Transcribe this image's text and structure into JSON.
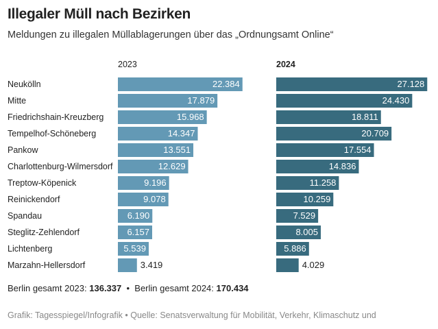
{
  "title": "Illegaler Müll nach Bezirken",
  "subtitle": "Meldungen zu illegalen Müllablagerungen über das „Ordnungsamt Online“",
  "chart_data": {
    "type": "bar",
    "orientation": "horizontal",
    "categories": [
      "Neukölln",
      "Mitte",
      "Friedrichshain-Kreuzberg",
      "Tempelhof-Schöneberg",
      "Pankow",
      "Charlottenburg-Wilmersdorf",
      "Treptow-Köpenick",
      "Reinickendorf",
      "Spandau",
      "Steglitz-Zehlendorf",
      "Lichtenberg",
      "Marzahn-Hellersdorf"
    ],
    "series": [
      {
        "name": "2023",
        "color": "#6399b5",
        "values": [
          22384,
          17879,
          15968,
          14347,
          13551,
          12629,
          9196,
          9078,
          6190,
          6157,
          5539,
          3419
        ]
      },
      {
        "name": "2024",
        "color": "#386b7e",
        "values": [
          27128,
          24430,
          18811,
          20709,
          17554,
          14836,
          11258,
          10259,
          7529,
          8005,
          5886,
          4029
        ]
      }
    ],
    "value_labels_2023": [
      "22.384",
      "17.879",
      "15.968",
      "14.347",
      "13.551",
      "12.629",
      "9.196",
      "9.078",
      "6.190",
      "6.157",
      "5.539",
      "3.419"
    ],
    "value_labels_2024": [
      "27.128",
      "24.430",
      "18.811",
      "20.709",
      "17.554",
      "14.836",
      "11.258",
      "10.259",
      "7.529",
      "8.005",
      "5.886",
      "4.029"
    ]
  },
  "totals": {
    "label_2023": "Berlin gesamt 2023:",
    "value_2023": "136.337",
    "separator": "•",
    "label_2024": "Berlin gesamt 2024:",
    "value_2024": "170.434"
  },
  "source": "Grafik: Tagesspiegel/Infografik • Quelle: Senatsverwaltung für Mobilität, Verkehr, Klimaschutz und"
}
